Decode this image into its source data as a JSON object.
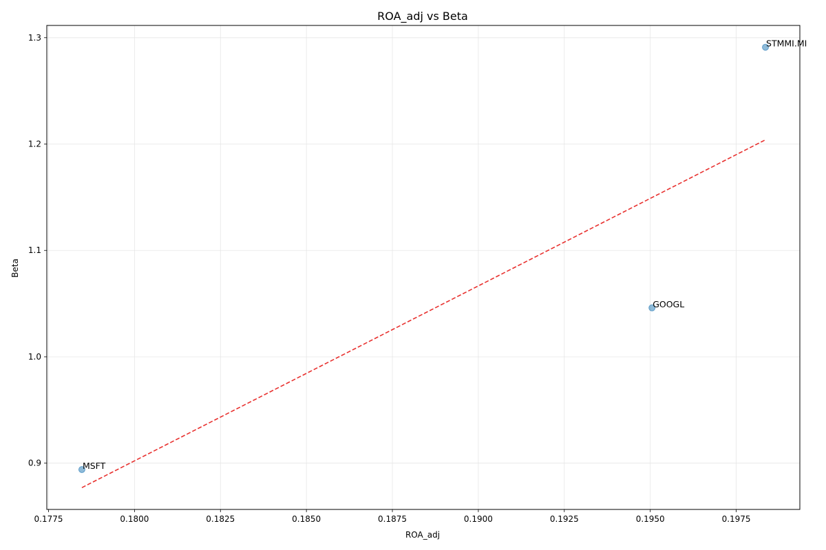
{
  "chart_data": {
    "type": "scatter",
    "title": "ROA_adj vs Beta",
    "xlabel": "ROA_adj",
    "ylabel": "Beta",
    "xlim": [
      0.17745,
      0.19935
    ],
    "ylim": [
      0.8565,
      1.3115
    ],
    "xticks": [
      0.1775,
      0.18,
      0.1825,
      0.185,
      0.1875,
      0.19,
      0.1925,
      0.195,
      0.1975
    ],
    "xtick_labels": [
      "0.1775",
      "0.1800",
      "0.1825",
      "0.1850",
      "0.1875",
      "0.1900",
      "0.1925",
      "0.1950",
      "0.1975"
    ],
    "yticks": [
      0.9,
      1.0,
      1.1,
      1.2,
      1.3
    ],
    "ytick_labels": [
      "0.9",
      "1.0",
      "1.1",
      "1.2",
      "1.3"
    ],
    "grid": true,
    "points": [
      {
        "label": "MSFT",
        "x": 0.17847,
        "y": 0.894
      },
      {
        "label": "GOOGL",
        "x": 0.19505,
        "y": 1.046
      },
      {
        "label": "STMMI.MI",
        "x": 0.19835,
        "y": 1.291
      }
    ],
    "trendline": {
      "style": "dashed",
      "x": [
        0.17847,
        0.19835
      ],
      "y": [
        0.877,
        1.204
      ]
    },
    "colors": {
      "point": "#1f77b4",
      "trendline": "#e8302e",
      "grid": "#e6e6e6",
      "axis": "#000000"
    }
  }
}
